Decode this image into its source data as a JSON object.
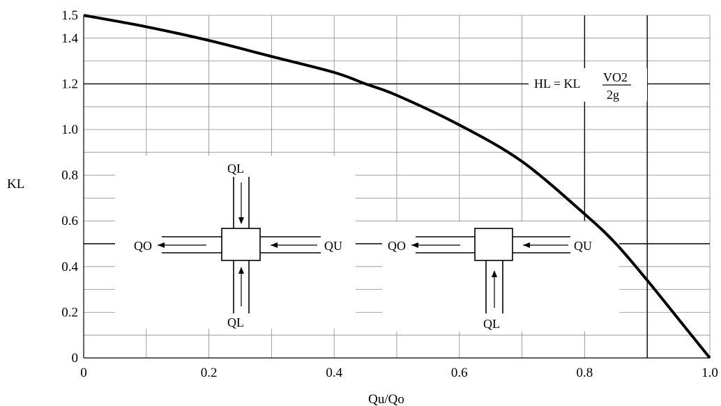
{
  "chart_data": {
    "type": "line",
    "title": "",
    "xlabel": "Qu/Qo",
    "ylabel": "KL",
    "xlim": [
      0,
      1.0
    ],
    "ylim": [
      0,
      1.5
    ],
    "x_ticks": [
      "0",
      "0.2",
      "0.4",
      "0.6",
      "0.8",
      "1.0"
    ],
    "y_ticks": [
      "0",
      "0.2",
      "0.4",
      "0.6",
      "0.8",
      "1.0",
      "1.2",
      "1.4",
      "1.5"
    ],
    "grid": true,
    "series": [
      {
        "x": [
          0,
          0.1,
          0.2,
          0.3,
          0.4,
          0.45,
          0.5,
          0.6,
          0.7,
          0.8,
          0.85,
          0.9,
          0.95,
          1.0
        ],
        "y": [
          1.5,
          1.45,
          1.39,
          1.32,
          1.25,
          1.2,
          1.15,
          1.02,
          0.86,
          0.63,
          0.5,
          0.34,
          0.17,
          0
        ]
      }
    ],
    "annotations": {
      "formula_lhs": "HL = KL",
      "formula_num": "VO2",
      "formula_den": "2g",
      "diagram1": {
        "top": "QL",
        "bottom": "QL",
        "left": "QO",
        "right": "QU"
      },
      "diagram2": {
        "bottom": "QL",
        "left": "QO",
        "right": "QU"
      }
    }
  }
}
